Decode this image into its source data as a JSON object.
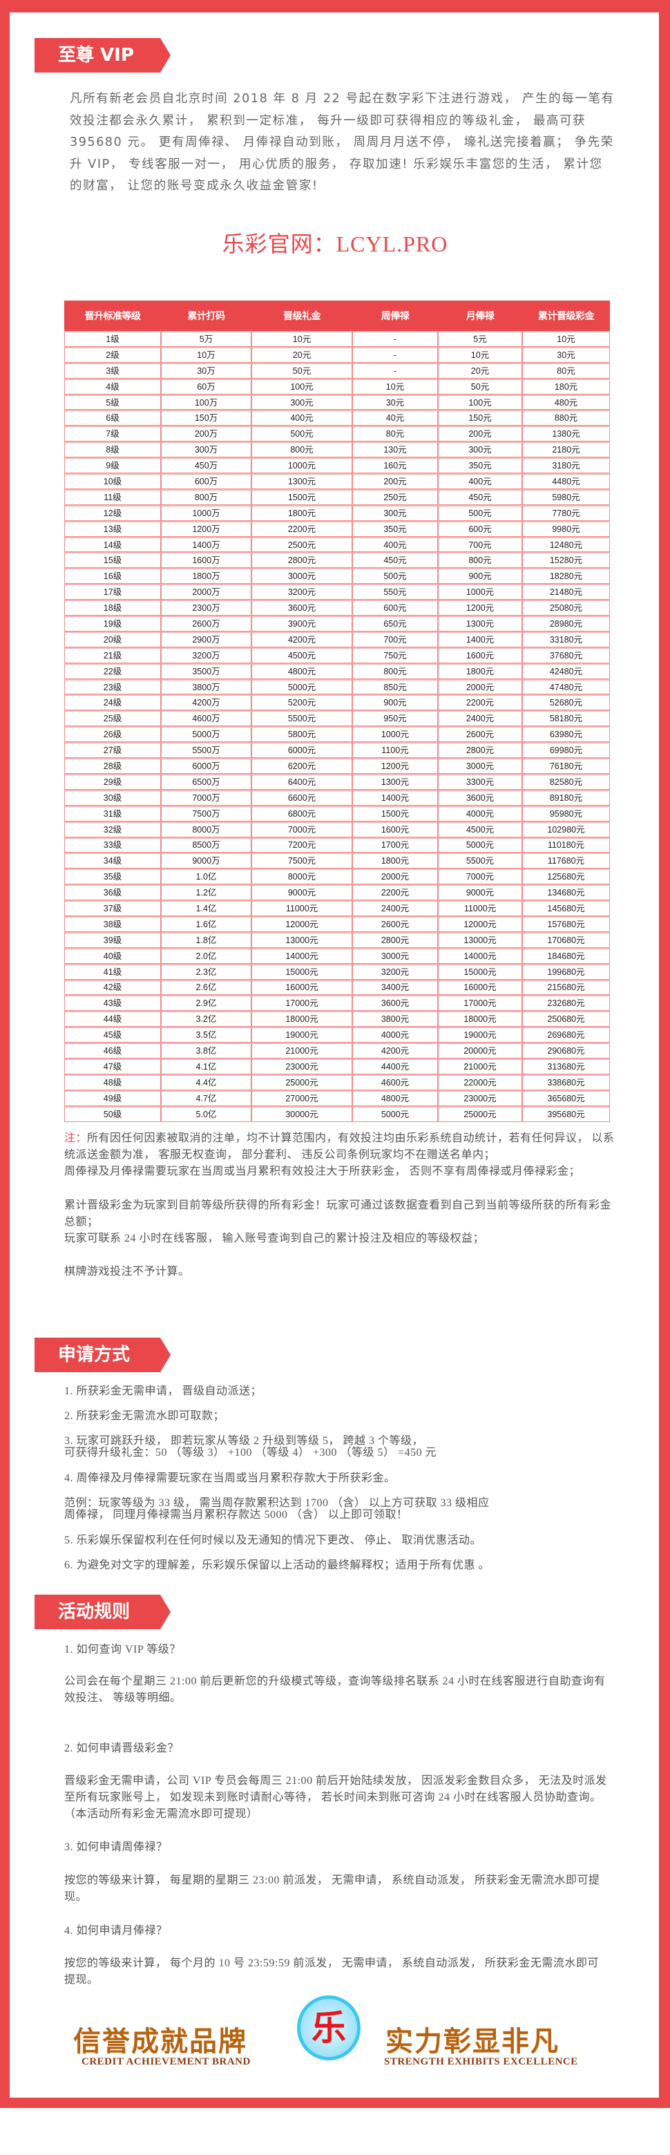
{
  "sections": {
    "vip": "至尊 VIP",
    "apply": "申请方式",
    "rules": "活动规则"
  },
  "intro": "凡所有新老会员自北京时间 2018 年 8 月 22 号起在数字彩下注进行游戏， 产生的每一笔有效投注都会永久累计， 累积到一定标准， 每升一级即可获得相应的等级礼金， 最高可获 395680 元。 更有周俸禄、 月俸禄自动到账， 周周月月送不停， 壕礼送完接着赢； 争先荣升 VIP， 专线客服一对一， 用心优质的服务， 存取加速! 乐彩娱乐丰富您的生活， 累计您的财富， 让您的账号变成永久收益金管家!",
  "site": "乐彩官网：LCYL.PRO",
  "table": {
    "headers": [
      "晋升标准等级",
      "累计打码",
      "晋级礼金",
      "周俸禄",
      "月俸禄",
      "累计晋级彩金"
    ],
    "rows": [
      [
        "1级",
        "5万",
        "10元",
        "-",
        "5元",
        "10元"
      ],
      [
        "2级",
        "10万",
        "20元",
        "-",
        "10元",
        "30元"
      ],
      [
        "3级",
        "30万",
        "50元",
        "-",
        "20元",
        "80元"
      ],
      [
        "4级",
        "60万",
        "100元",
        "10元",
        "50元",
        "180元"
      ],
      [
        "5级",
        "100万",
        "300元",
        "30元",
        "100元",
        "480元"
      ],
      [
        "6级",
        "150万",
        "400元",
        "40元",
        "150元",
        "880元"
      ],
      [
        "7级",
        "200万",
        "500元",
        "80元",
        "200元",
        "1380元"
      ],
      [
        "8级",
        "300万",
        "800元",
        "130元",
        "300元",
        "2180元"
      ],
      [
        "9级",
        "450万",
        "1000元",
        "160元",
        "350元",
        "3180元"
      ],
      [
        "10级",
        "600万",
        "1300元",
        "200元",
        "400元",
        "4480元"
      ],
      [
        "11级",
        "800万",
        "1500元",
        "250元",
        "450元",
        "5980元"
      ],
      [
        "12级",
        "1000万",
        "1800元",
        "300元",
        "500元",
        "7780元"
      ],
      [
        "13级",
        "1200万",
        "2200元",
        "350元",
        "600元",
        "9980元"
      ],
      [
        "14级",
        "1400万",
        "2500元",
        "400元",
        "700元",
        "12480元"
      ],
      [
        "15级",
        "1600万",
        "2800元",
        "450元",
        "800元",
        "15280元"
      ],
      [
        "16级",
        "1800万",
        "3000元",
        "500元",
        "900元",
        "18280元"
      ],
      [
        "17级",
        "2000万",
        "3200元",
        "550元",
        "1000元",
        "21480元"
      ],
      [
        "18级",
        "2300万",
        "3600元",
        "600元",
        "1200元",
        "25080元"
      ],
      [
        "19级",
        "2600万",
        "3900元",
        "650元",
        "1300元",
        "28980元"
      ],
      [
        "20级",
        "2900万",
        "4200元",
        "700元",
        "1400元",
        "33180元"
      ],
      [
        "21级",
        "3200万",
        "4500元",
        "750元",
        "1600元",
        "37680元"
      ],
      [
        "22级",
        "3500万",
        "4800元",
        "800元",
        "1800元",
        "42480元"
      ],
      [
        "23级",
        "3800万",
        "5000元",
        "850元",
        "2000元",
        "47480元"
      ],
      [
        "24级",
        "4200万",
        "5200元",
        "900元",
        "2200元",
        "52680元"
      ],
      [
        "25级",
        "4600万",
        "5500元",
        "950元",
        "2400元",
        "58180元"
      ],
      [
        "26级",
        "5000万",
        "5800元",
        "1000元",
        "2600元",
        "63980元"
      ],
      [
        "27级",
        "5500万",
        "6000元",
        "1100元",
        "2800元",
        "69980元"
      ],
      [
        "28级",
        "6000万",
        "6200元",
        "1200元",
        "3000元",
        "76180元"
      ],
      [
        "29级",
        "6500万",
        "6400元",
        "1300元",
        "3300元",
        "82580元"
      ],
      [
        "30级",
        "7000万",
        "6600元",
        "1400元",
        "3600元",
        "89180元"
      ],
      [
        "31级",
        "7500万",
        "6800元",
        "1500元",
        "4000元",
        "95980元"
      ],
      [
        "32级",
        "8000万",
        "7000元",
        "1600元",
        "4500元",
        "102980元"
      ],
      [
        "33级",
        "8500万",
        "7200元",
        "1700元",
        "5000元",
        "110180元"
      ],
      [
        "34级",
        "9000万",
        "7500元",
        "1800元",
        "5500元",
        "117680元"
      ],
      [
        "35级",
        "1.0亿",
        "8000元",
        "2000元",
        "7000元",
        "125680元"
      ],
      [
        "36级",
        "1.2亿",
        "9000元",
        "2200元",
        "9000元",
        "134680元"
      ],
      [
        "37级",
        "1.4亿",
        "11000元",
        "2400元",
        "11000元",
        "145680元"
      ],
      [
        "38级",
        "1.6亿",
        "12000元",
        "2600元",
        "12000元",
        "157680元"
      ],
      [
        "39级",
        "1.8亿",
        "13000元",
        "2800元",
        "13000元",
        "170680元"
      ],
      [
        "40级",
        "2.0亿",
        "14000元",
        "3000元",
        "14000元",
        "184680元"
      ],
      [
        "41级",
        "2.3亿",
        "15000元",
        "3200元",
        "15000元",
        "199680元"
      ],
      [
        "42级",
        "2.6亿",
        "16000元",
        "3400元",
        "16000元",
        "215680元"
      ],
      [
        "43级",
        "2.9亿",
        "17000元",
        "3600元",
        "17000元",
        "232680元"
      ],
      [
        "44级",
        "3.2亿",
        "18000元",
        "3800元",
        "18000元",
        "250680元"
      ],
      [
        "45级",
        "3.5亿",
        "19000元",
        "4000元",
        "19000元",
        "269680元"
      ],
      [
        "46级",
        "3.8亿",
        "21000元",
        "4200元",
        "20000元",
        "290680元"
      ],
      [
        "47级",
        "4.1亿",
        "23000元",
        "4400元",
        "21000元",
        "313680元"
      ],
      [
        "48级",
        "4.4亿",
        "25000元",
        "4600元",
        "22000元",
        "338680元"
      ],
      [
        "49级",
        "4.7亿",
        "27000元",
        "4800元",
        "23000元",
        "365680元"
      ],
      [
        "50级",
        "5.0亿",
        "30000元",
        "5000元",
        "25000元",
        "395680元"
      ]
    ]
  },
  "notes": {
    "label": "注：",
    "n1": "所有因任何因素被取消的注单，均不计算范围内，有效投注均由乐彩系统自动统计，若有任何异议， 以系统派送金额为准， 客服无权查询， 部分套利、 违反公司条例玩家均不在赠送名单内；",
    "n2": "周俸禄及月俸禄需要玩家在当周或当月累积有效投注大于所获彩金， 否则不享有周俸禄或月俸禄彩金；",
    "n3": "累计晋级彩金为玩家到目前等级所获得的所有彩金！玩家可通过该数据查看到自己到当前等级所获的所有彩金总额；",
    "n4": "玩家可联系 24 小时在线客服， 输入账号查询到自己的累计投注及相应的等级权益；",
    "n5": "棋牌游戏投注不予计算。"
  },
  "apply": [
    "1. 所获彩金无需申请， 晋级自动派送；",
    "2. 所获彩金无需流水即可取款；",
    "3. 玩家可跳跃升级， 即若玩家从等级 2 升级到等级 5， 跨越 3 个等级，",
    "可获得升级礼金：50 （等级 3） +100 （等级 4） +300 （等级 5） =450 元",
    "4. 周俸禄及月俸禄需要玩家在当周或当月累积存款大于所获彩金。",
    "范例：玩家等级为 33 级， 需当周存款累积达到 1700 （含） 以上方可获取 33 级相应",
    "周俸禄， 同理月俸禄需当月累积存款达 5000 （含） 以上即可领取！",
    "5. 乐彩娱乐保留权利在任何时候以及无通知的情况下更改、 停止、 取消优惠活动。",
    "6. 为避免对文字的理解差，乐彩娱乐保留以上活动的最终解释权；适用于所有优惠 。"
  ],
  "rules": {
    "q1": "1. 如何查询 VIP 等级？",
    "a1": "公司会在每个星期三 21:00 前后更新您的升级模式等级，查询等级排名联系 24 小时在线客服进行自助查询有效投注、 等级等明细。",
    "q2": "2. 如何申请晋级彩金？",
    "a2": "晋级彩金无需申请，公司 VIP 专员会每周三 21:00 前后开始陆续发放， 因派发彩金数目众多， 无法及时派发至所有玩家账号上， 如发现未到账时请耐心等待， 若长时间未到账可咨询 24 小时在线客服人员协助查询。（本活动所有彩金无需流水即可提现）",
    "q3": "3. 如何申请周俸禄？",
    "a3": "按您的等级来计算， 每星期的星期三 23:00 前派发， 无需申请， 系统自动派发， 所获彩金无需流水即可提现。",
    "q4": "4. 如何申请月俸禄？",
    "a4": "按您的等级来计算， 每个月的 10 号 23:59:59 前派发， 无需申请， 系统自动派发， 所获彩金无需流水即可提现。"
  },
  "brand": {
    "left_cn": "信誉成就品牌",
    "left_en": "CREDIT ACHIEVEMENT BRAND",
    "logo": "乐",
    "right_cn": "实力彰显非凡",
    "right_en": "STRENGTH EXHIBITS EXCELLENCE"
  },
  "colors": {
    "accent": "#e9474a",
    "text": "#666666",
    "brand_gold": "#b8620e"
  }
}
